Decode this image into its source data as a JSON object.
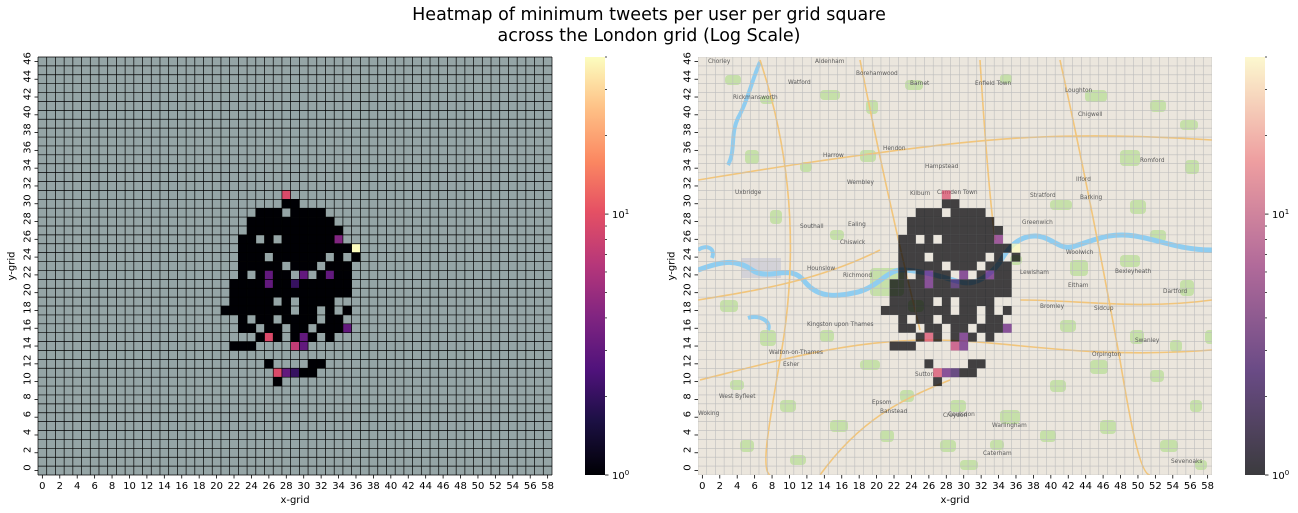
{
  "title": [
    "Heatmap of minimum tweets per user per grid square",
    "across the London grid (Log Scale)"
  ],
  "chart_data": [
    {
      "type": "heatmap",
      "panel": "left",
      "background": "plain",
      "xlabel": "x-grid",
      "ylabel": "y-grid",
      "xlim": [
        0,
        59
      ],
      "ylim": [
        0,
        47
      ],
      "xticks": [
        0,
        2,
        4,
        6,
        8,
        10,
        12,
        14,
        16,
        18,
        20,
        22,
        24,
        26,
        28,
        30,
        32,
        34,
        36,
        38,
        40,
        42,
        44,
        46,
        48,
        50,
        52,
        54,
        56,
        58
      ],
      "yticks": [
        0,
        2,
        4,
        6,
        8,
        10,
        12,
        14,
        16,
        18,
        20,
        22,
        24,
        26,
        28,
        30,
        32,
        34,
        36,
        38,
        40,
        42,
        44,
        46
      ],
      "colorbar": {
        "scale": "log",
        "colormap": "magma",
        "range": [
          1,
          40
        ],
        "ticks": [
          "10^0",
          "10^1"
        ]
      },
      "missing_color": "#95a5a6",
      "grid_color": "#000000",
      "default_value": 1,
      "rows": [
        {
          "y": 10,
          "xs": [
            26,
            34
          ]
        },
        {
          "y": 11,
          "xs": [
            27,
            31
          ]
        },
        {
          "y": 12,
          "xs": [
            26,
            33
          ]
        },
        {
          "y": 13,
          "xs": [
            22,
            24
          ]
        },
        {
          "y": 14,
          "xs": [
            22,
            34
          ]
        },
        {
          "y": 15,
          "xs": [
            24,
            36
          ]
        },
        {
          "y": 16,
          "xs": [
            22,
            35
          ]
        },
        {
          "y": 17,
          "xs": [
            22,
            36
          ]
        },
        {
          "y": 18,
          "xs": [
            21,
            36
          ]
        },
        {
          "y": 19,
          "xs": [
            22,
            36
          ]
        },
        {
          "y": 20,
          "xs": [
            22,
            35
          ]
        },
        {
          "y": 21,
          "xs": [
            22,
            35
          ]
        },
        {
          "y": 22,
          "xs": [
            23,
            35
          ]
        },
        {
          "y": 23,
          "xs": [
            23,
            35
          ]
        },
        {
          "y": 24,
          "xs": [
            23,
            36
          ]
        },
        {
          "y": 25,
          "xs": [
            23,
            35
          ]
        },
        {
          "y": 26,
          "xs": [
            23,
            34
          ]
        },
        {
          "y": 27,
          "xs": [
            24,
            34
          ]
        },
        {
          "y": 28,
          "xs": [
            24,
            33
          ]
        },
        {
          "y": 29,
          "xs": [
            25,
            32
          ]
        },
        {
          "y": 30,
          "xs": [
            28,
            29
          ]
        }
      ],
      "holes": [
        [
          26,
          10
        ],
        [
          28,
          10
        ],
        [
          29,
          10
        ],
        [
          30,
          10
        ],
        [
          31,
          10
        ],
        [
          32,
          10
        ],
        [
          33,
          10
        ],
        [
          34,
          10
        ],
        [
          27,
          12
        ],
        [
          28,
          12
        ],
        [
          29,
          12
        ],
        [
          30,
          12
        ],
        [
          33,
          12
        ],
        [
          22,
          13
        ],
        [
          23,
          13
        ],
        [
          24,
          13
        ],
        [
          25,
          14
        ],
        [
          26,
          14
        ],
        [
          27,
          14
        ],
        [
          28,
          14
        ],
        [
          29,
          14
        ],
        [
          30,
          14
        ],
        [
          31,
          14
        ],
        [
          32,
          14
        ],
        [
          33,
          14
        ],
        [
          34,
          14
        ],
        [
          24,
          15
        ],
        [
          26,
          15
        ],
        [
          28,
          15
        ],
        [
          30,
          15
        ],
        [
          32,
          15
        ],
        [
          34,
          15
        ],
        [
          35,
          15
        ],
        [
          36,
          15
        ],
        [
          22,
          16
        ],
        [
          25,
          16
        ],
        [
          28,
          16
        ],
        [
          31,
          16
        ],
        [
          35,
          16
        ],
        [
          22,
          17
        ],
        [
          24,
          17
        ],
        [
          27,
          17
        ],
        [
          32,
          17
        ],
        [
          35,
          17
        ],
        [
          36,
          17
        ],
        [
          29,
          18
        ],
        [
          32,
          18
        ],
        [
          34,
          18
        ],
        [
          36,
          18
        ],
        [
          27,
          19
        ],
        [
          29,
          19
        ],
        [
          34,
          19
        ],
        [
          35,
          19
        ],
        [
          36,
          19
        ],
        [
          24,
          22
        ],
        [
          29,
          22
        ],
        [
          31,
          22
        ],
        [
          28,
          23
        ],
        [
          32,
          23
        ],
        [
          26,
          24
        ],
        [
          33,
          24
        ],
        [
          35,
          24
        ],
        [
          25,
          26
        ],
        [
          27,
          26
        ],
        [
          28,
          29
        ]
      ],
      "cells": [
        {
          "x": 28,
          "y": 31,
          "v": 9
        },
        {
          "x": 34,
          "y": 26,
          "v": 4
        },
        {
          "x": 36,
          "y": 25,
          "v": 40
        },
        {
          "x": 26,
          "y": 22,
          "v": 3
        },
        {
          "x": 30,
          "y": 22,
          "v": 3
        },
        {
          "x": 33,
          "y": 22,
          "v": 3
        },
        {
          "x": 26,
          "y": 21,
          "v": 3
        },
        {
          "x": 29,
          "y": 21,
          "v": 2
        },
        {
          "x": 35,
          "y": 16,
          "v": 3
        },
        {
          "x": 26,
          "y": 15,
          "v": 9
        },
        {
          "x": 30,
          "y": 15,
          "v": 3
        },
        {
          "x": 29,
          "y": 14,
          "v": 7
        },
        {
          "x": 30,
          "y": 14,
          "v": 3
        },
        {
          "x": 27,
          "y": 11,
          "v": 9
        },
        {
          "x": 28,
          "y": 11,
          "v": 3
        },
        {
          "x": 29,
          "y": 11,
          "v": 2
        }
      ]
    },
    {
      "type": "heatmap",
      "panel": "right",
      "background": "map",
      "xlabel": "x-grid",
      "ylabel": "y-grid",
      "xlim": [
        0,
        59
      ],
      "ylim": [
        0,
        47
      ],
      "xticks": [
        0,
        2,
        4,
        6,
        8,
        10,
        12,
        14,
        16,
        18,
        20,
        22,
        24,
        26,
        28,
        30,
        32,
        34,
        36,
        38,
        40,
        42,
        44,
        46,
        48,
        50,
        52,
        54,
        56,
        58
      ],
      "yticks": [
        0,
        2,
        4,
        6,
        8,
        10,
        12,
        14,
        16,
        18,
        20,
        22,
        24,
        26,
        28,
        30,
        32,
        34,
        36,
        38,
        40,
        42,
        44,
        46
      ],
      "colorbar": {
        "scale": "log",
        "colormap": "magma",
        "range": [
          1,
          40
        ],
        "ticks": [
          "10^0",
          "10^1"
        ]
      },
      "same_data_as": "left",
      "map_labels": [
        "Chorley",
        "Watford",
        "Aldenham",
        "Borehamwood",
        "Barnet",
        "Enfield Town",
        "Rickmansworth",
        "Loughton",
        "Chigwell",
        "Harrow",
        "Hendon",
        "Romford",
        "Wembley",
        "Hampstead",
        "Stratford",
        "Ilford",
        "Barking",
        "Uxbridge",
        "Southall",
        "Ealing",
        "Chiswick",
        "Kilburn",
        "Camden Town",
        "Greenwich",
        "Woolwich",
        "Hounslow",
        "Richmond",
        "Lewisham",
        "Eltham",
        "Bexleyheath",
        "Dartford",
        "Sidcup",
        "Bromley",
        "Swanley",
        "Kingston upon Thames",
        "Walton-on-Thames",
        "Esher",
        "Sutton",
        "Croydon",
        "West Byfleet",
        "Epsom",
        "Banstead",
        "Coulsdon",
        "Warlingham",
        "Caterham",
        "Sevenoaks",
        "Woking",
        "Orpington"
      ]
    }
  ]
}
